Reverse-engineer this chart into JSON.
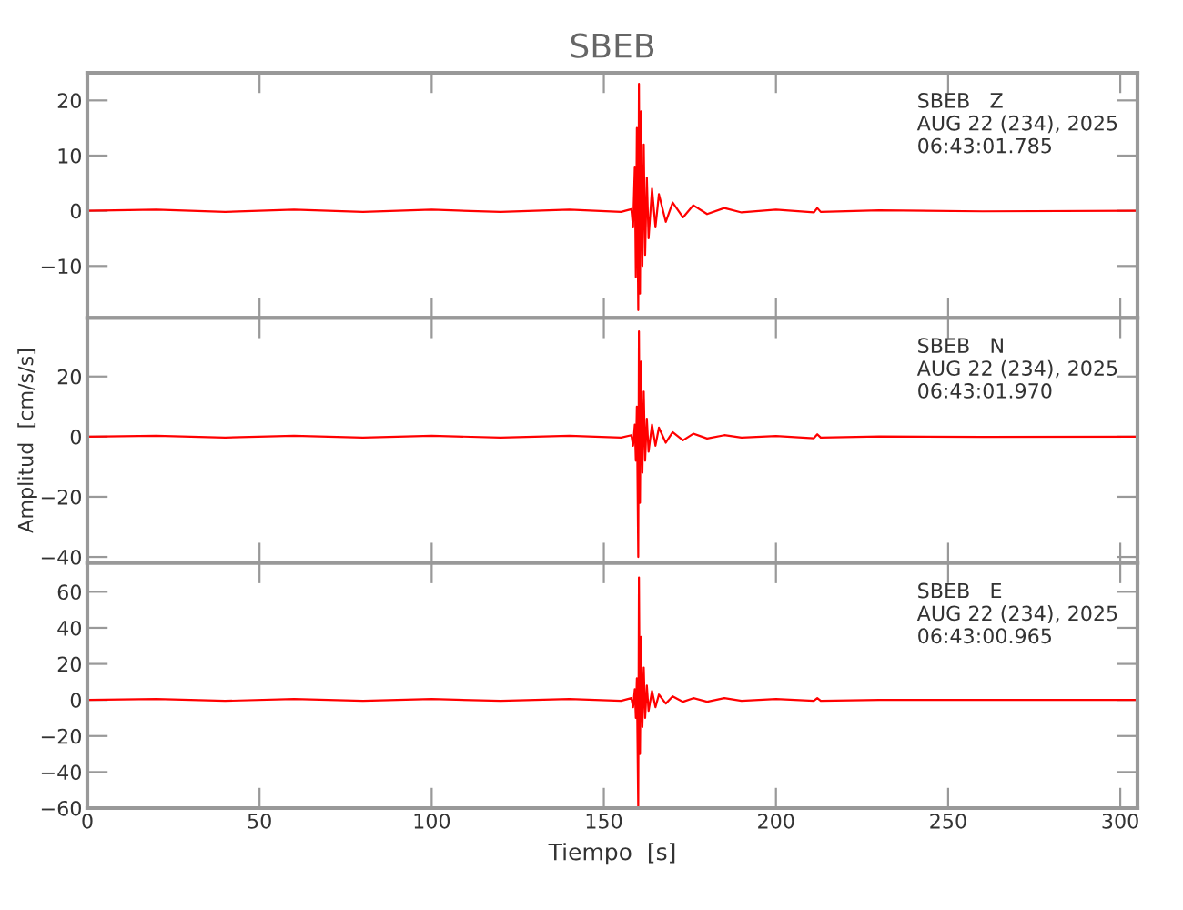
{
  "chart_data": [
    {
      "type": "line",
      "title": "SBEB",
      "xlim": [
        0,
        305
      ],
      "ylim": [
        -19.4,
        25
      ],
      "xticks": [
        {
          "value": 0,
          "label": null
        },
        {
          "value": 50,
          "label": null
        },
        {
          "value": 100,
          "label": null
        },
        {
          "value": 150,
          "label": null
        },
        {
          "value": 200,
          "label": null
        },
        {
          "value": 250,
          "label": null
        },
        {
          "value": 300,
          "label": null
        }
      ],
      "yticks": [
        {
          "value": -10,
          "label": "−10"
        },
        0,
        10,
        20
      ],
      "tick_labels": "y",
      "grid": false,
      "legend": false,
      "annotations": [
        "SBEB   Z\nAUG 22 (234), 2025\n06:43:01.785"
      ],
      "series": [
        {
          "color": "#ff0000",
          "x": [
            0,
            20,
            40,
            60,
            80,
            100,
            120,
            140,
            155,
            158,
            158.5,
            159,
            159.3,
            159.6,
            160,
            160.2,
            160.5,
            160.8,
            161.2,
            161.6,
            162,
            162.5,
            163,
            164,
            165,
            166,
            168,
            170,
            173,
            176,
            180,
            185,
            190,
            200,
            211,
            212,
            213,
            230,
            260,
            305
          ],
          "values": [
            0,
            0.2,
            -0.2,
            0.2,
            -0.2,
            0.2,
            -0.2,
            0.2,
            -0.2,
            0.3,
            -3,
            8,
            -12,
            15,
            -18,
            23,
            -15,
            18,
            -10,
            12,
            -8,
            6,
            -5,
            4,
            -3,
            3,
            -2,
            1.5,
            -1.2,
            1,
            -0.6,
            0.5,
            -0.3,
            0.2,
            -0.3,
            0.5,
            -0.2,
            0.1,
            -0.1,
            0
          ]
        }
      ]
    },
    {
      "type": "line",
      "ylabel": "Amplitud  [cm/s/s]",
      "xlim": [
        0,
        305
      ],
      "ylim": [
        -42,
        39.5
      ],
      "xticks": [
        {
          "value": 0,
          "label": null
        },
        {
          "value": 50,
          "label": null
        },
        {
          "value": 100,
          "label": null
        },
        {
          "value": 150,
          "label": null
        },
        {
          "value": 200,
          "label": null
        },
        {
          "value": 250,
          "label": null
        },
        {
          "value": 300,
          "label": null
        }
      ],
      "yticks": [
        {
          "value": -40,
          "label": "−40"
        },
        {
          "value": -20,
          "label": "−20"
        },
        0,
        20
      ],
      "tick_labels": "y",
      "grid": false,
      "legend": false,
      "annotations": [
        "SBEB   N\nAUG 22 (234), 2025\n06:43:01.970"
      ],
      "series": [
        {
          "color": "#ff0000",
          "x": [
            0,
            20,
            40,
            60,
            80,
            100,
            120,
            140,
            155,
            158,
            158.5,
            159,
            159.3,
            159.6,
            160,
            160.2,
            160.5,
            160.8,
            161.2,
            161.6,
            162,
            162.5,
            163,
            164,
            165,
            166,
            168,
            170,
            173,
            176,
            180,
            185,
            190,
            200,
            211,
            212,
            213,
            230,
            260,
            305
          ],
          "values": [
            0,
            0.3,
            -0.3,
            0.3,
            -0.3,
            0.3,
            -0.3,
            0.3,
            -0.3,
            0.5,
            -3,
            4,
            -8,
            10,
            -40,
            35,
            -22,
            25,
            -12,
            15,
            -8,
            6,
            -5,
            4,
            -3,
            3,
            -2,
            1.5,
            -1.2,
            1,
            -0.6,
            0.5,
            -0.3,
            0.2,
            -0.5,
            0.8,
            -0.3,
            0.1,
            -0.1,
            0
          ]
        }
      ]
    },
    {
      "type": "line",
      "xlabel": "Tiempo  [s]",
      "xlim": [
        0,
        305
      ],
      "ylim": [
        -60,
        76
      ],
      "xticks": [
        0,
        50,
        100,
        150,
        200,
        250,
        300
      ],
      "yticks": [
        {
          "value": -60,
          "label": "−60"
        },
        {
          "value": -40,
          "label": "−40"
        },
        {
          "value": -20,
          "label": "−20"
        },
        0,
        20,
        40,
        60
      ],
      "grid": false,
      "legend": false,
      "annotations": [
        "SBEB   E\nAUG 22 (234), 2025\n06:43:00.965"
      ],
      "series": [
        {
          "color": "#ff0000",
          "x": [
            0,
            20,
            40,
            60,
            80,
            100,
            120,
            140,
            155,
            158,
            158.5,
            159,
            159.3,
            159.6,
            160,
            160.2,
            160.5,
            160.8,
            161.2,
            161.6,
            162,
            162.5,
            163,
            164,
            165,
            166,
            168,
            170,
            173,
            176,
            180,
            185,
            190,
            200,
            211,
            212,
            213,
            230,
            260,
            305
          ],
          "values": [
            0,
            0.5,
            -0.5,
            0.5,
            -0.5,
            0.5,
            -0.5,
            0.5,
            -0.5,
            1,
            -4,
            6,
            -10,
            12,
            -60,
            68,
            -30,
            35,
            -15,
            18,
            -10,
            8,
            -6,
            5,
            -4,
            3,
            -2,
            2,
            -1,
            1,
            -1,
            1,
            -0.5,
            0.5,
            -0.5,
            1,
            -0.5,
            0,
            0,
            0
          ]
        }
      ]
    }
  ]
}
